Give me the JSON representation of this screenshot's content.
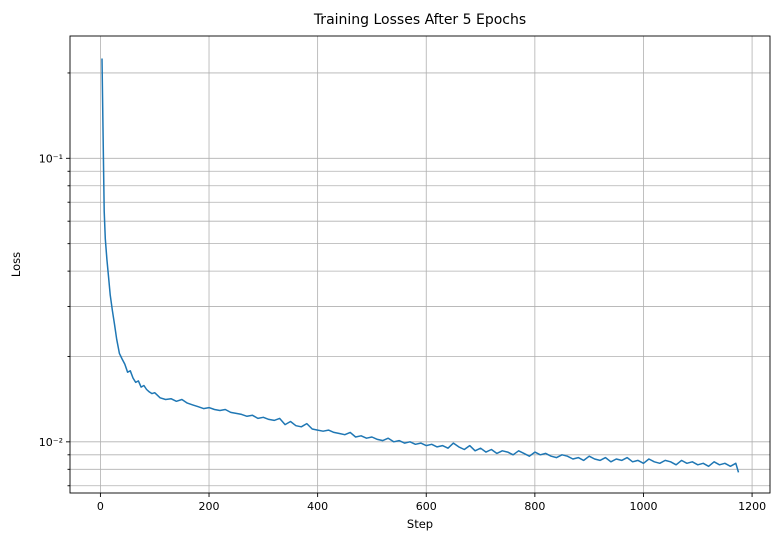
{
  "chart_data": {
    "type": "line",
    "title": "Training Losses After 5 Epochs",
    "xlabel": "Step",
    "ylabel": "Loss",
    "xscale": "linear",
    "yscale": "log",
    "xlim": [
      -56,
      1233
    ],
    "ylim": [
      0.0066,
      0.27
    ],
    "grid": true,
    "x_ticks": [
      0,
      200,
      400,
      600,
      800,
      1000,
      1200
    ],
    "x_tick_labels": [
      "0",
      "200",
      "400",
      "600",
      "800",
      "1000",
      "1200"
    ],
    "y_major_ticks": [
      0.01,
      0.1
    ],
    "y_major_tick_labels": [
      "10⁻²",
      "10⁻¹"
    ],
    "y_minor_ticks": [
      0.007,
      0.008,
      0.009,
      0.02,
      0.03,
      0.04,
      0.05,
      0.06,
      0.07,
      0.08,
      0.09,
      0.2
    ],
    "series": [
      {
        "color": "#1f77b4",
        "x": [
          3,
          5,
          7,
          9,
          12,
          15,
          18,
          22,
          26,
          30,
          35,
          40,
          45,
          50,
          55,
          60,
          65,
          70,
          75,
          80,
          85,
          90,
          95,
          100,
          110,
          120,
          130,
          140,
          150,
          160,
          170,
          180,
          190,
          200,
          210,
          220,
          230,
          240,
          250,
          260,
          270,
          280,
          290,
          300,
          310,
          320,
          330,
          340,
          350,
          360,
          370,
          380,
          390,
          400,
          410,
          420,
          430,
          440,
          450,
          460,
          470,
          480,
          490,
          500,
          510,
          520,
          530,
          540,
          550,
          560,
          570,
          580,
          590,
          600,
          610,
          620,
          630,
          640,
          650,
          660,
          670,
          680,
          690,
          700,
          710,
          720,
          730,
          740,
          750,
          760,
          770,
          780,
          790,
          800,
          810,
          820,
          830,
          840,
          850,
          860,
          870,
          880,
          890,
          900,
          910,
          920,
          930,
          940,
          950,
          960,
          970,
          980,
          990,
          1000,
          1010,
          1020,
          1030,
          1040,
          1050,
          1060,
          1070,
          1080,
          1090,
          1100,
          1110,
          1120,
          1130,
          1140,
          1150,
          1160,
          1165,
          1170,
          1175
        ],
        "y": [
          0.225,
          0.12,
          0.065,
          0.052,
          0.044,
          0.038,
          0.033,
          0.029,
          0.026,
          0.023,
          0.0205,
          0.0196,
          0.0188,
          0.0176,
          0.0178,
          0.0168,
          0.0162,
          0.0164,
          0.0156,
          0.0158,
          0.0153,
          0.015,
          0.0148,
          0.0149,
          0.0143,
          0.0141,
          0.0142,
          0.0139,
          0.0141,
          0.0137,
          0.0135,
          0.0133,
          0.0131,
          0.0132,
          0.013,
          0.0129,
          0.013,
          0.0127,
          0.0126,
          0.0125,
          0.0123,
          0.0124,
          0.0121,
          0.0122,
          0.012,
          0.0119,
          0.0121,
          0.0115,
          0.0118,
          0.0114,
          0.0113,
          0.0116,
          0.0111,
          0.011,
          0.0109,
          0.011,
          0.0108,
          0.0107,
          0.0106,
          0.0108,
          0.0104,
          0.0105,
          0.0103,
          0.0104,
          0.0102,
          0.0101,
          0.0103,
          0.01,
          0.0101,
          0.0099,
          0.01,
          0.0098,
          0.0099,
          0.0097,
          0.0098,
          0.0096,
          0.0097,
          0.0095,
          0.0099,
          0.0096,
          0.0094,
          0.0097,
          0.0093,
          0.0095,
          0.0092,
          0.0094,
          0.0091,
          0.0093,
          0.0092,
          0.009,
          0.0093,
          0.0091,
          0.0089,
          0.0092,
          0.009,
          0.0091,
          0.0089,
          0.0088,
          0.009,
          0.0089,
          0.0087,
          0.0088,
          0.0086,
          0.0089,
          0.0087,
          0.0086,
          0.0088,
          0.0085,
          0.0087,
          0.0086,
          0.0088,
          0.0085,
          0.0086,
          0.0084,
          0.0087,
          0.0085,
          0.0084,
          0.0086,
          0.0085,
          0.0083,
          0.0086,
          0.0084,
          0.0085,
          0.0083,
          0.0084,
          0.0082,
          0.0085,
          0.0083,
          0.0084,
          0.0082,
          0.0083,
          0.0084,
          0.0078
        ]
      }
    ]
  }
}
